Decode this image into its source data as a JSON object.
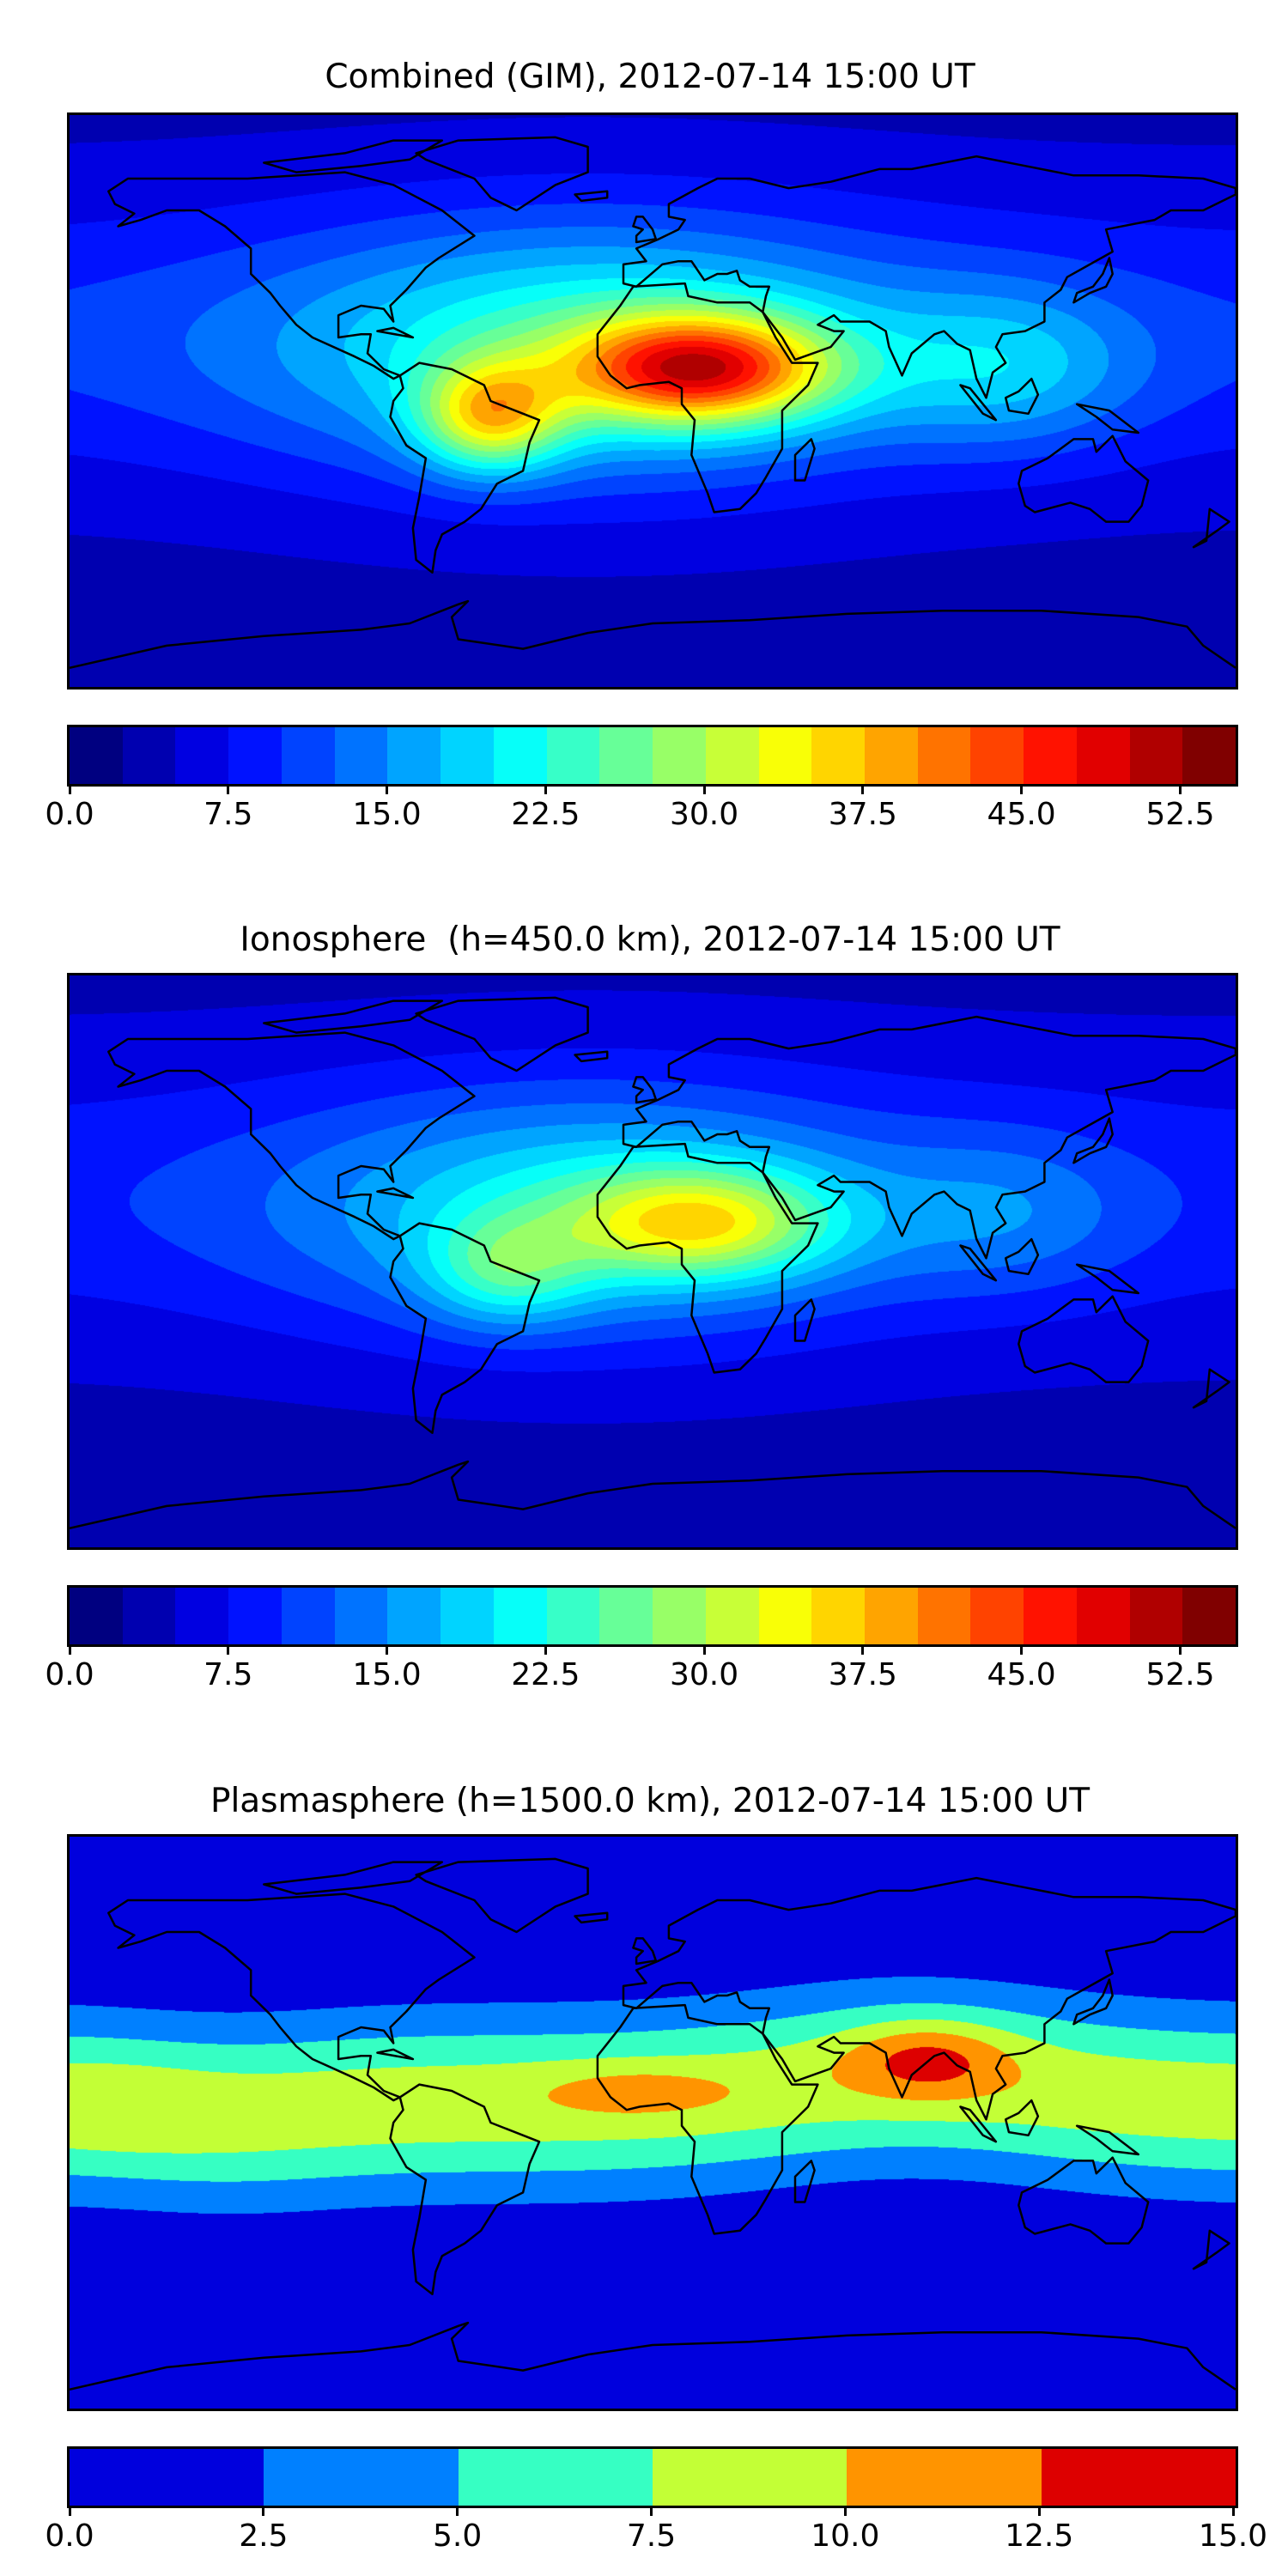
{
  "panels": [
    {
      "id": "combined",
      "title": "Combined (GIM), 2012-07-14 15:00 UT",
      "colorbar": {
        "min": 0,
        "max": 55,
        "step": 2.5,
        "colormap": "jet",
        "ticks": [
          "0.0",
          "7.5",
          "15.0",
          "22.5",
          "30.0",
          "37.5",
          "45.0",
          "52.5"
        ],
        "tick_values": [
          0,
          7.5,
          15,
          22.5,
          30,
          37.5,
          45,
          52.5
        ]
      },
      "field_model": {
        "base": 4,
        "base_lat_amp": 6,
        "peaks": [
          {
            "lon": -20,
            "lat": 15,
            "amp": 14,
            "slon": 95,
            "slat": 40
          },
          {
            "lon": 15,
            "lat": 10,
            "amp": 30,
            "slon": 40,
            "slat": 17
          },
          {
            "lon": -50,
            "lat": -5,
            "amp": 20,
            "slon": 22,
            "slat": 17
          },
          {
            "lon": 110,
            "lat": 10,
            "amp": 8,
            "slon": 40,
            "slat": 25
          }
        ]
      }
    },
    {
      "id": "ionosphere",
      "title": "Ionosphere  (h=450.0 km), 2012-07-14 15:00 UT",
      "colorbar": {
        "min": 0,
        "max": 55,
        "step": 2.5,
        "colormap": "jet",
        "ticks": [
          "0.0",
          "7.5",
          "15.0",
          "22.5",
          "30.0",
          "37.5",
          "45.0",
          "52.5"
        ],
        "tick_values": [
          0,
          7.5,
          15,
          22.5,
          30,
          37.5,
          45,
          52.5
        ]
      },
      "field_model": {
        "base": 4,
        "base_lat_amp": 5,
        "peaks": [
          {
            "lon": -20,
            "lat": 15,
            "amp": 12,
            "slon": 90,
            "slat": 38
          },
          {
            "lon": 15,
            "lat": 12,
            "amp": 18,
            "slon": 40,
            "slat": 17
          },
          {
            "lon": -45,
            "lat": -3,
            "amp": 10,
            "slon": 25,
            "slat": 17
          },
          {
            "lon": 110,
            "lat": 15,
            "amp": 5,
            "slon": 40,
            "slat": 25
          }
        ]
      }
    },
    {
      "id": "plasmasphere",
      "title": "Plasmasphere (h=1500.0 km), 2012-07-14 15:00 UT",
      "colorbar": {
        "min": 0,
        "max": 15,
        "step": 2.5,
        "colors": [
          "#0000dd",
          "#0080ff",
          "#36ffc3",
          "#c3ff36",
          "#ff9400",
          "#dd0000"
        ],
        "ticks": [
          "0.0",
          "2.5",
          "5.0",
          "7.5",
          "10.0",
          "12.5",
          "15.0"
        ],
        "tick_values": [
          0,
          2.5,
          5,
          7.5,
          10,
          12.5,
          15
        ]
      },
      "field_model": {
        "band_amp": 9,
        "band_width": 28,
        "peaks": [
          {
            "lon": 85,
            "lat": 20,
            "amp": 5,
            "slon": 25,
            "slat": 12
          },
          {
            "lon": -5,
            "lat": 10,
            "amp": 2.5,
            "slon": 30,
            "slat": 8
          },
          {
            "lon": -165,
            "lat": 5,
            "amp": 1,
            "slon": 30,
            "slat": 15
          }
        ]
      }
    }
  ],
  "coastlines": {
    "north_america": [
      [
        -168,
        66
      ],
      [
        -162,
        70
      ],
      [
        -140,
        70
      ],
      [
        -125,
        70
      ],
      [
        -95,
        72
      ],
      [
        -80,
        68
      ],
      [
        -65,
        60
      ],
      [
        -55,
        52
      ],
      [
        -66,
        45
      ],
      [
        -70,
        42
      ],
      [
        -76,
        35
      ],
      [
        -81,
        30
      ],
      [
        -80,
        25
      ],
      [
        -83,
        29
      ],
      [
        -90,
        30
      ],
      [
        -97,
        27
      ],
      [
        -97,
        20
      ],
      [
        -90,
        21
      ],
      [
        -87,
        21
      ],
      [
        -88,
        15
      ],
      [
        -83,
        10
      ],
      [
        -78,
        8
      ],
      [
        -80,
        7
      ],
      [
        -86,
        11
      ],
      [
        -92,
        14
      ],
      [
        -105,
        20
      ],
      [
        -110,
        24
      ],
      [
        -115,
        30
      ],
      [
        -118,
        34
      ],
      [
        -124,
        40
      ],
      [
        -124,
        48
      ],
      [
        -132,
        55
      ],
      [
        -140,
        60
      ],
      [
        -150,
        60
      ],
      [
        -158,
        57
      ],
      [
        -165,
        55
      ],
      [
        -160,
        59
      ],
      [
        -166,
        62
      ]
    ],
    "south_america": [
      [
        -78,
        8
      ],
      [
        -72,
        12
      ],
      [
        -62,
        10
      ],
      [
        -52,
        5
      ],
      [
        -50,
        0
      ],
      [
        -35,
        -6
      ],
      [
        -38,
        -13
      ],
      [
        -40,
        -22
      ],
      [
        -48,
        -26
      ],
      [
        -53,
        -34
      ],
      [
        -58,
        -38
      ],
      [
        -65,
        -42
      ],
      [
        -67,
        -47
      ],
      [
        -68,
        -54
      ],
      [
        -73,
        -50
      ],
      [
        -74,
        -40
      ],
      [
        -72,
        -30
      ],
      [
        -70,
        -18
      ],
      [
        -76,
        -14
      ],
      [
        -81,
        -5
      ],
      [
        -80,
        0
      ],
      [
        -77,
        4
      ]
    ],
    "africa": [
      [
        -17,
        21
      ],
      [
        -10,
        30
      ],
      [
        -6,
        36
      ],
      [
        10,
        37
      ],
      [
        11,
        33
      ],
      [
        20,
        31
      ],
      [
        30,
        31
      ],
      [
        34,
        28
      ],
      [
        38,
        20
      ],
      [
        43,
        12
      ],
      [
        51,
        12
      ],
      [
        48,
        5
      ],
      [
        40,
        -3
      ],
      [
        40,
        -15
      ],
      [
        35,
        -24
      ],
      [
        32,
        -29
      ],
      [
        27,
        -34
      ],
      [
        19,
        -35
      ],
      [
        17,
        -29
      ],
      [
        12,
        -17
      ],
      [
        13,
        -6
      ],
      [
        9,
        -1
      ],
      [
        9,
        4
      ],
      [
        5,
        6
      ],
      [
        -4,
        5
      ],
      [
        -8,
        4
      ],
      [
        -13,
        8
      ],
      [
        -17,
        14
      ]
    ],
    "eurasia": [
      [
        -9,
        37
      ],
      [
        -9,
        43
      ],
      [
        -2,
        44
      ],
      [
        -5,
        48
      ],
      [
        2,
        51
      ],
      [
        8,
        54
      ],
      [
        10,
        57
      ],
      [
        5,
        58
      ],
      [
        5,
        62
      ],
      [
        14,
        67
      ],
      [
        20,
        70
      ],
      [
        30,
        70
      ],
      [
        42,
        67
      ],
      [
        55,
        69
      ],
      [
        70,
        73
      ],
      [
        80,
        73
      ],
      [
        100,
        77
      ],
      [
        115,
        74
      ],
      [
        130,
        71
      ],
      [
        150,
        71
      ],
      [
        170,
        70
      ],
      [
        180,
        67
      ],
      [
        180,
        65
      ],
      [
        170,
        60
      ],
      [
        160,
        60
      ],
      [
        155,
        57
      ],
      [
        140,
        54
      ],
      [
        142,
        47
      ],
      [
        135,
        43
      ],
      [
        128,
        39
      ],
      [
        126,
        35
      ],
      [
        121,
        31
      ],
      [
        121,
        25
      ],
      [
        115,
        22
      ],
      [
        108,
        21
      ],
      [
        106,
        17
      ],
      [
        109,
        12
      ],
      [
        105,
        9
      ],
      [
        103,
        1
      ],
      [
        100,
        7
      ],
      [
        98,
        16
      ],
      [
        94,
        18
      ],
      [
        90,
        22
      ],
      [
        87,
        21
      ],
      [
        80,
        15
      ],
      [
        77,
        8
      ],
      [
        73,
        17
      ],
      [
        72,
        22
      ],
      [
        67,
        25
      ],
      [
        58,
        25
      ],
      [
        56,
        27
      ],
      [
        51,
        24
      ],
      [
        56,
        22
      ],
      [
        59,
        22
      ],
      [
        55,
        17
      ],
      [
        44,
        13
      ],
      [
        40,
        20
      ],
      [
        34,
        28
      ],
      [
        35,
        33
      ],
      [
        36,
        36
      ],
      [
        30,
        36
      ],
      [
        27,
        38
      ],
      [
        26,
        41
      ],
      [
        23,
        40
      ],
      [
        20,
        40
      ],
      [
        16,
        38
      ],
      [
        12,
        44
      ],
      [
        8,
        44
      ],
      [
        3,
        43
      ],
      [
        -5,
        36
      ]
    ],
    "australia": [
      [
        114,
        -22
      ],
      [
        122,
        -18
      ],
      [
        130,
        -12
      ],
      [
        136,
        -12
      ],
      [
        137,
        -16
      ],
      [
        142,
        -11
      ],
      [
        146,
        -19
      ],
      [
        153,
        -25
      ],
      [
        151,
        -33
      ],
      [
        147,
        -38
      ],
      [
        140,
        -38
      ],
      [
        135,
        -34
      ],
      [
        129,
        -32
      ],
      [
        118,
        -35
      ],
      [
        115,
        -33
      ],
      [
        113,
        -26
      ]
    ],
    "greenland": [
      [
        -73,
        78
      ],
      [
        -60,
        82
      ],
      [
        -30,
        83
      ],
      [
        -20,
        80
      ],
      [
        -20,
        72
      ],
      [
        -30,
        68
      ],
      [
        -42,
        60
      ],
      [
        -50,
        64
      ],
      [
        -55,
        70
      ],
      [
        -70,
        76
      ]
    ],
    "arctic_islands": [
      [
        -120,
        75
      ],
      [
        -95,
        78
      ],
      [
        -80,
        82
      ],
      [
        -65,
        82
      ],
      [
        -75,
        76
      ],
      [
        -90,
        74
      ],
      [
        -110,
        72
      ]
    ],
    "uk": [
      [
        -5,
        50
      ],
      [
        1,
        51
      ],
      [
        0,
        54
      ],
      [
        -3,
        58
      ],
      [
        -5,
        58
      ],
      [
        -6,
        55
      ],
      [
        -3,
        54
      ],
      [
        -5,
        52
      ]
    ],
    "iceland": [
      [
        -24,
        65
      ],
      [
        -14,
        66
      ],
      [
        -14,
        64
      ],
      [
        -22,
        63
      ]
    ],
    "japan": [
      [
        130,
        31
      ],
      [
        135,
        34
      ],
      [
        140,
        36
      ],
      [
        142,
        40
      ],
      [
        141,
        45
      ],
      [
        139,
        40
      ],
      [
        136,
        36
      ],
      [
        131,
        34
      ]
    ],
    "madagascar": [
      [
        44,
        -25
      ],
      [
        47,
        -25
      ],
      [
        50,
        -15
      ],
      [
        49,
        -12
      ],
      [
        44,
        -17
      ]
    ],
    "borneo": [
      [
        109,
        1
      ],
      [
        113,
        3
      ],
      [
        117,
        7
      ],
      [
        119,
        2
      ],
      [
        116,
        -4
      ],
      [
        110,
        -3
      ]
    ],
    "sumatra": [
      [
        95,
        5
      ],
      [
        98,
        4
      ],
      [
        106,
        -6
      ],
      [
        102,
        -4
      ]
    ],
    "new_guinea": [
      [
        131,
        -1
      ],
      [
        141,
        -3
      ],
      [
        150,
        -10
      ],
      [
        142,
        -9
      ],
      [
        137,
        -5
      ]
    ],
    "new_zealand": [
      [
        172,
        -34
      ],
      [
        178,
        -38
      ],
      [
        174,
        -41
      ],
      [
        167,
        -46
      ],
      [
        171,
        -44
      ]
    ],
    "cuba": [
      [
        -85,
        22
      ],
      [
        -74,
        20
      ],
      [
        -80,
        23
      ]
    ],
    "antarctica": [
      [
        -180,
        -84
      ],
      [
        -150,
        -77
      ],
      [
        -120,
        -74
      ],
      [
        -90,
        -72
      ],
      [
        -75,
        -70
      ],
      [
        -60,
        -64
      ],
      [
        -57,
        -63
      ],
      [
        -62,
        -68
      ],
      [
        -60,
        -75
      ],
      [
        -40,
        -78
      ],
      [
        -20,
        -73
      ],
      [
        0,
        -70
      ],
      [
        30,
        -69
      ],
      [
        60,
        -67
      ],
      [
        90,
        -66
      ],
      [
        120,
        -66
      ],
      [
        150,
        -68
      ],
      [
        165,
        -71
      ],
      [
        170,
        -77
      ],
      [
        180,
        -84
      ]
    ]
  }
}
